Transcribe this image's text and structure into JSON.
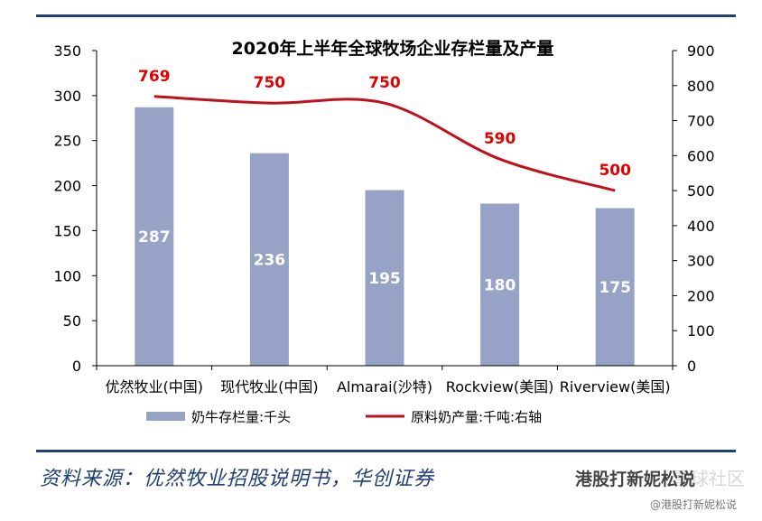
{
  "chart_data": {
    "type": "bar",
    "title": "2020年上半年全球牧场企业存栏量及产量",
    "categories": [
      "优然牧业(中国)",
      "现代牧业(中国)",
      "Almarai(沙特)",
      "Rockview(美国)",
      "Riverview(美国)"
    ],
    "series": [
      {
        "name": "奶牛存栏量:千头",
        "type": "bar",
        "axis": "left",
        "values": [
          287,
          236,
          195,
          180,
          175
        ],
        "color": "#96a3c7"
      },
      {
        "name": "原料奶产量:千吨:右轴",
        "type": "line",
        "axis": "right",
        "values": [
          769,
          750,
          750,
          590,
          500
        ],
        "color": "#c0101a"
      }
    ],
    "y_left": {
      "lim": [
        0,
        350
      ],
      "ticks": [
        "0",
        "50",
        "100",
        "150",
        "200",
        "250",
        "300",
        "350"
      ]
    },
    "y_right": {
      "lim": [
        0,
        900
      ],
      "ticks": [
        "0",
        "100",
        "200",
        "300",
        "400",
        "500",
        "600",
        "700",
        "800",
        "900"
      ]
    },
    "grid": false,
    "legend": "bottom"
  },
  "footer": {
    "source": "资料来源：优然牧业招股说明书，华创证券",
    "watermark": "港股打新妮松说",
    "watermark_handle": "@港股打新妮松说",
    "watermark_faded": "雪球社区"
  }
}
